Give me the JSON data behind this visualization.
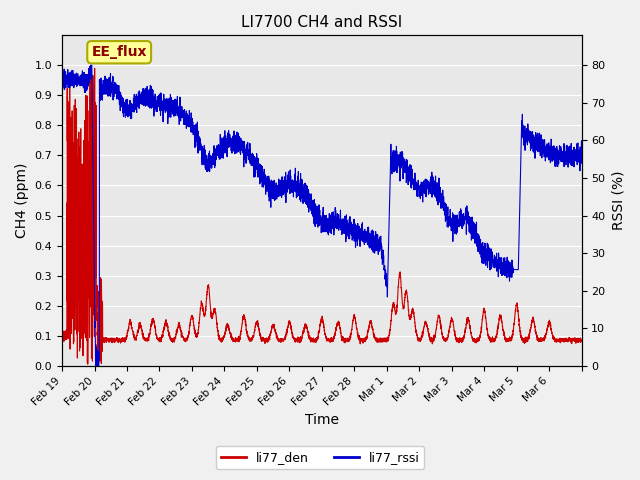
{
  "title": "LI7700 CH4 and RSSI",
  "xlabel": "Time",
  "ylabel_left": "CH4 (ppm)",
  "ylabel_right": "RSSI (%)",
  "annotation_text": "EE_flux",
  "bg_color": "#e8e8e8",
  "line_color_red": "#cc0000",
  "line_color_blue": "#0000cc",
  "ylim_left": [
    0.0,
    1.1
  ],
  "ylim_right": [
    0,
    88
  ],
  "yticks_left": [
    0.0,
    0.1,
    0.2,
    0.3,
    0.4,
    0.5,
    0.6,
    0.7,
    0.8,
    0.9,
    1.0
  ],
  "yticks_right": [
    0,
    10,
    20,
    30,
    40,
    50,
    60,
    70,
    80
  ],
  "legend_labels": [
    "li77_den",
    "li77_rssi"
  ],
  "legend_colors": [
    "#cc0000",
    "#0000cc"
  ],
  "figsize": [
    6.4,
    4.8
  ],
  "dpi": 100,
  "xtick_positions": [
    0,
    1,
    2,
    3,
    4,
    5,
    6,
    7,
    8,
    9,
    10,
    11,
    12,
    13,
    14,
    15,
    16
  ],
  "xtick_labels": [
    "Feb 19",
    "Feb 20",
    "Feb 21",
    "Feb 22",
    "Feb 23",
    "Feb 24",
    "Feb 25",
    "Feb 26",
    "Feb 27",
    "Feb 28",
    "Mar 1",
    "Mar 2",
    "Mar 3",
    "Mar 4",
    "Mar 5",
    "Mar 6",
    ""
  ]
}
